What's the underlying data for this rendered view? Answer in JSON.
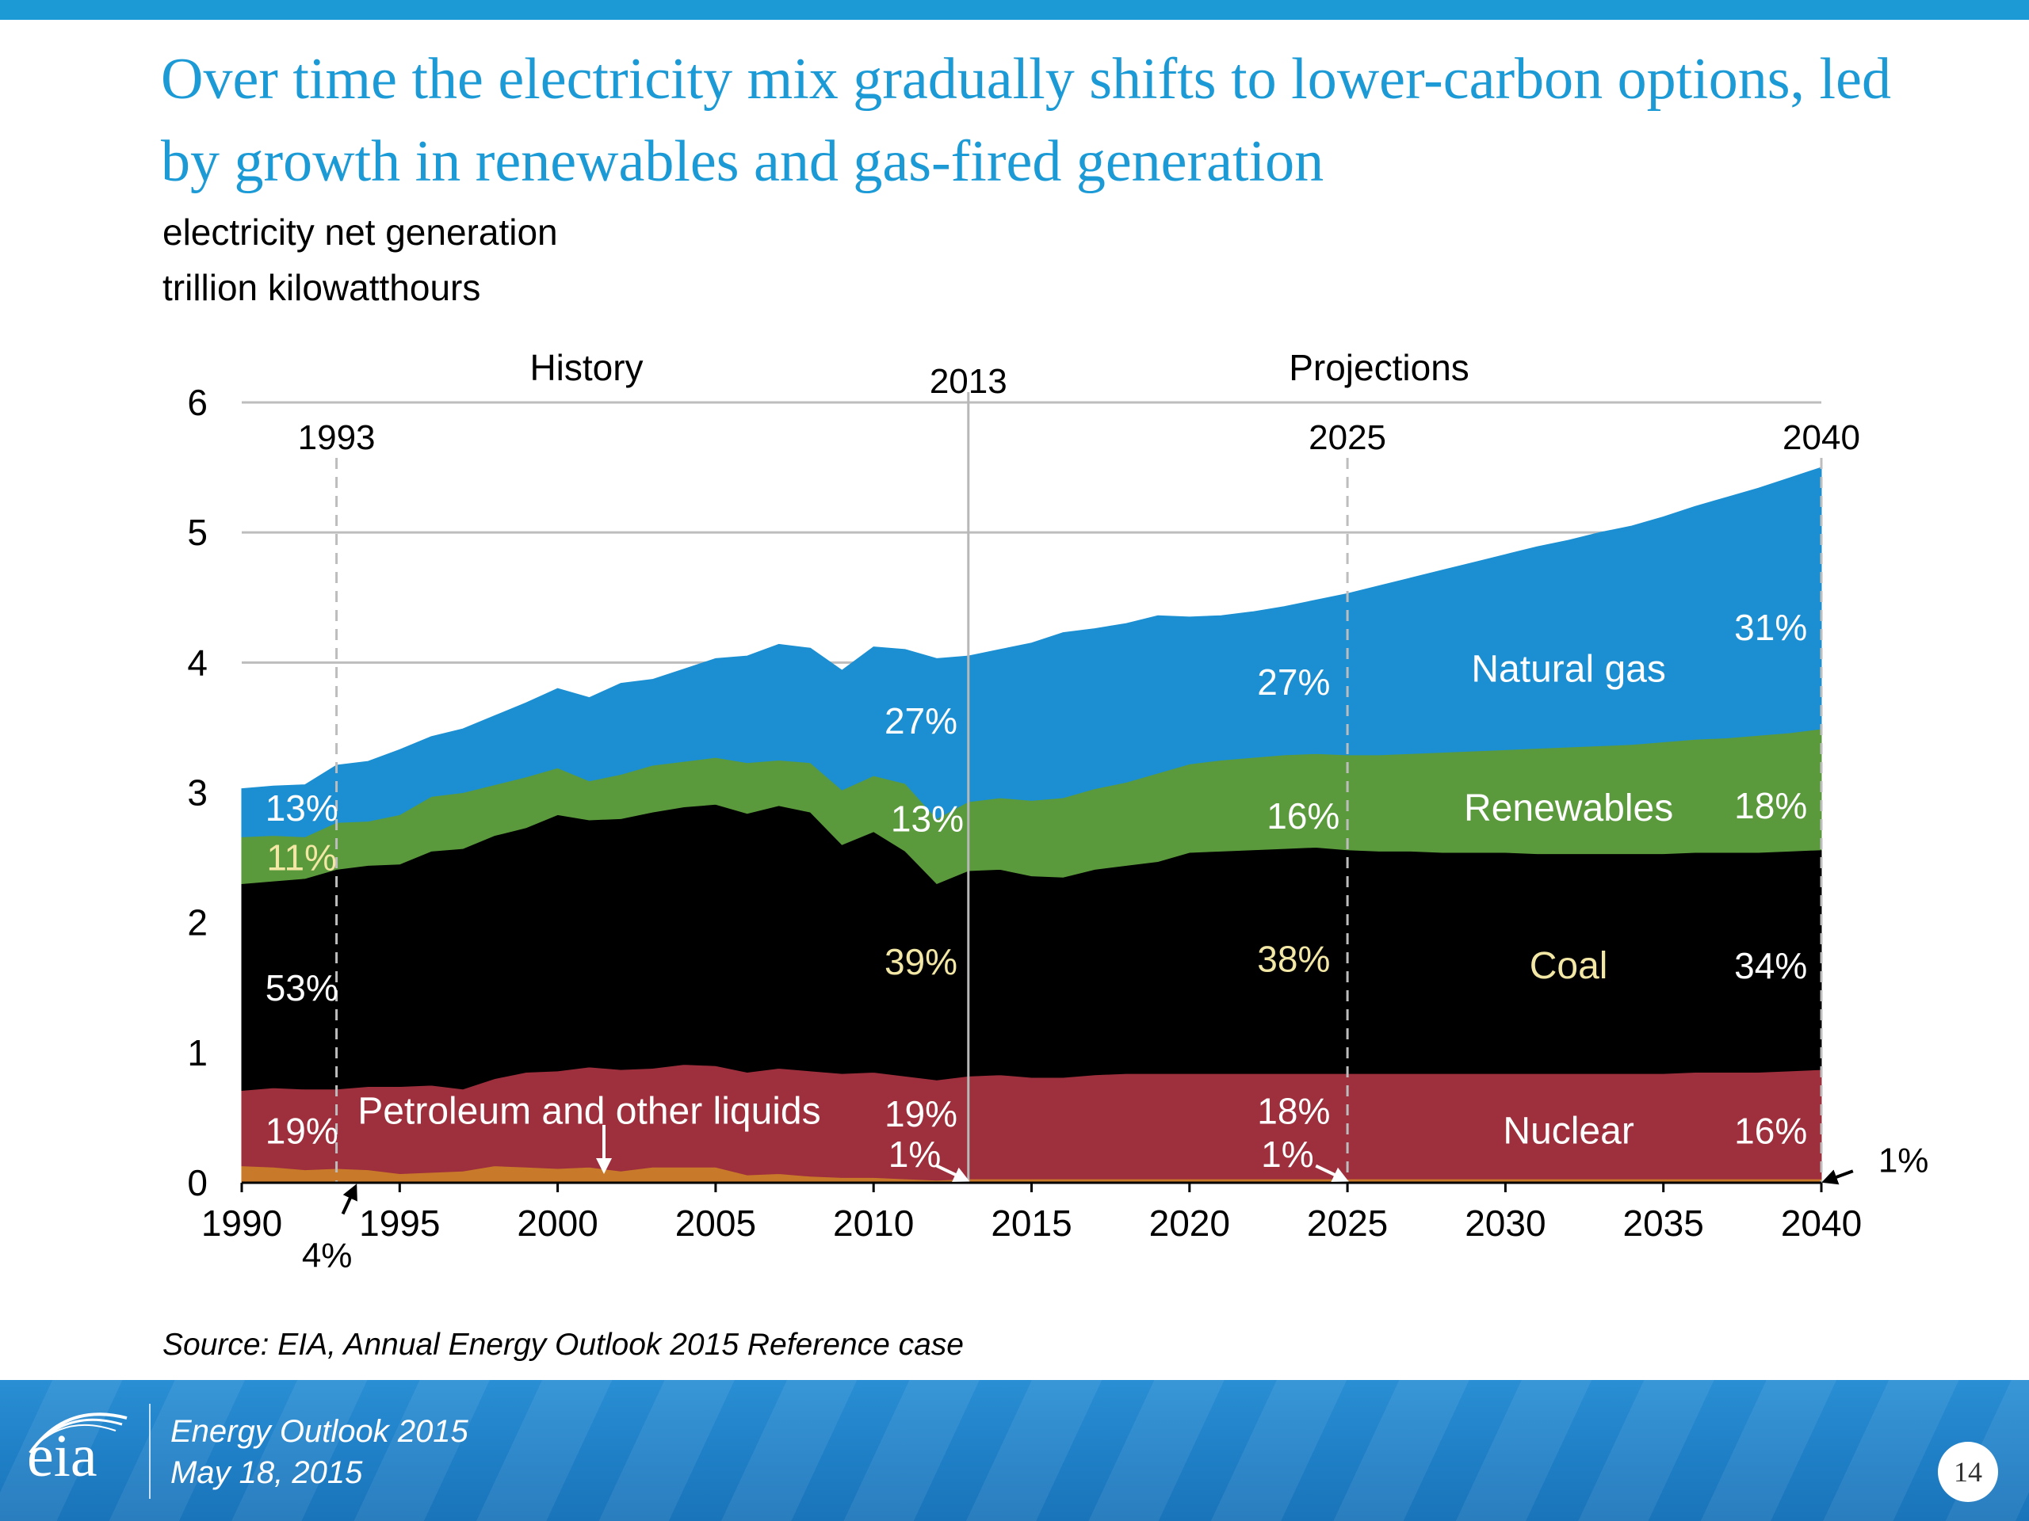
{
  "slide": {
    "title": "Over time the electricity mix gradually shifts to lower-carbon options, led by growth in renewables and gas-fired generation",
    "subtitle_line1": "electricity net generation",
    "subtitle_line2": "trillion kilowatthours",
    "source": "Source:  EIA, Annual Energy Outlook 2015 Reference case",
    "footer": {
      "logo_text": "eia",
      "line1": "Energy  Outlook 2015",
      "line2": "May 18, 2015",
      "page_number": "14"
    },
    "colors": {
      "title": "#1b9ad6",
      "footer": "#1f7fc6"
    }
  },
  "chart_data": {
    "type": "area",
    "stacked": true,
    "x": [
      1990,
      1991,
      1992,
      1993,
      1994,
      1995,
      1996,
      1997,
      1998,
      1999,
      2000,
      2001,
      2002,
      2003,
      2004,
      2005,
      2006,
      2007,
      2008,
      2009,
      2010,
      2011,
      2012,
      2013,
      2014,
      2015,
      2016,
      2017,
      2018,
      2019,
      2020,
      2021,
      2022,
      2023,
      2024,
      2025,
      2026,
      2027,
      2028,
      2029,
      2030,
      2031,
      2032,
      2033,
      2034,
      2035,
      2036,
      2037,
      2038,
      2039,
      2040
    ],
    "xlim": [
      1990,
      2040
    ],
    "ylim": [
      0,
      6
    ],
    "x_ticks": [
      1990,
      1995,
      2000,
      2005,
      2010,
      2015,
      2020,
      2025,
      2030,
      2035,
      2040
    ],
    "y_ticks": [
      0,
      1,
      2,
      3,
      4,
      5,
      6
    ],
    "grid": "horizontal",
    "legend": "labels inside areas",
    "series": [
      {
        "name": "Petroleum and other liquids",
        "color": "#c87a2a",
        "values": [
          0.13,
          0.12,
          0.1,
          0.11,
          0.1,
          0.07,
          0.08,
          0.09,
          0.13,
          0.12,
          0.11,
          0.12,
          0.09,
          0.12,
          0.12,
          0.12,
          0.06,
          0.07,
          0.05,
          0.04,
          0.04,
          0.03,
          0.02,
          0.03,
          0.03,
          0.03,
          0.03,
          0.03,
          0.03,
          0.03,
          0.03,
          0.03,
          0.03,
          0.03,
          0.03,
          0.03,
          0.03,
          0.03,
          0.03,
          0.03,
          0.03,
          0.03,
          0.03,
          0.03,
          0.03,
          0.03,
          0.03,
          0.03,
          0.03,
          0.03,
          0.03
        ]
      },
      {
        "name": "Nuclear",
        "color": "#9e2f3d",
        "values": [
          0.58,
          0.61,
          0.62,
          0.61,
          0.64,
          0.67,
          0.67,
          0.63,
          0.67,
          0.73,
          0.75,
          0.77,
          0.78,
          0.76,
          0.79,
          0.78,
          0.79,
          0.81,
          0.81,
          0.8,
          0.81,
          0.79,
          0.77,
          0.79,
          0.8,
          0.78,
          0.78,
          0.8,
          0.81,
          0.81,
          0.81,
          0.81,
          0.81,
          0.81,
          0.81,
          0.81,
          0.81,
          0.81,
          0.81,
          0.81,
          0.81,
          0.81,
          0.81,
          0.81,
          0.81,
          0.81,
          0.82,
          0.82,
          0.82,
          0.83,
          0.84
        ]
      },
      {
        "name": "Coal",
        "color": "#000000",
        "values": [
          1.59,
          1.59,
          1.62,
          1.69,
          1.7,
          1.71,
          1.8,
          1.85,
          1.87,
          1.88,
          1.97,
          1.9,
          1.93,
          1.97,
          1.98,
          2.01,
          1.99,
          2.02,
          1.99,
          1.76,
          1.85,
          1.73,
          1.51,
          1.58,
          1.58,
          1.55,
          1.54,
          1.58,
          1.6,
          1.63,
          1.7,
          1.71,
          1.72,
          1.73,
          1.74,
          1.72,
          1.71,
          1.71,
          1.7,
          1.7,
          1.7,
          1.69,
          1.69,
          1.69,
          1.69,
          1.69,
          1.69,
          1.69,
          1.69,
          1.69,
          1.69
        ]
      },
      {
        "name": "Renewables",
        "color": "#5b9a3c",
        "values": [
          0.36,
          0.35,
          0.32,
          0.36,
          0.34,
          0.38,
          0.42,
          0.43,
          0.39,
          0.39,
          0.36,
          0.3,
          0.34,
          0.36,
          0.35,
          0.36,
          0.39,
          0.35,
          0.38,
          0.42,
          0.43,
          0.52,
          0.5,
          0.53,
          0.55,
          0.58,
          0.61,
          0.62,
          0.64,
          0.68,
          0.68,
          0.7,
          0.71,
          0.72,
          0.72,
          0.73,
          0.74,
          0.75,
          0.77,
          0.78,
          0.79,
          0.81,
          0.82,
          0.83,
          0.84,
          0.86,
          0.87,
          0.88,
          0.9,
          0.91,
          0.93
        ]
      },
      {
        "name": "Natural gas",
        "color": "#1b8fd2",
        "values": [
          0.37,
          0.38,
          0.4,
          0.44,
          0.46,
          0.5,
          0.46,
          0.49,
          0.53,
          0.57,
          0.61,
          0.64,
          0.7,
          0.66,
          0.71,
          0.76,
          0.82,
          0.89,
          0.88,
          0.92,
          0.99,
          1.03,
          1.23,
          1.12,
          1.14,
          1.21,
          1.27,
          1.23,
          1.22,
          1.21,
          1.13,
          1.11,
          1.12,
          1.14,
          1.18,
          1.24,
          1.3,
          1.35,
          1.4,
          1.45,
          1.5,
          1.55,
          1.59,
          1.64,
          1.68,
          1.73,
          1.79,
          1.85,
          1.9,
          1.96,
          2.01
        ]
      }
    ],
    "y_label": "trillion kilowatthours",
    "period_labels": [
      "History",
      "Projections"
    ],
    "reference_years": [
      {
        "year": 1993,
        "label": "1993",
        "style": "dashed"
      },
      {
        "year": 2013,
        "label": "2013",
        "style": "solid"
      },
      {
        "year": 2025,
        "label": "2025",
        "style": "dashed"
      },
      {
        "year": 2040,
        "label": "2040",
        "style": "dashed"
      }
    ],
    "area_labels": [
      {
        "text": "Natural gas",
        "x": 2032,
        "y": 3.95,
        "color": "#ffffff"
      },
      {
        "text": "Renewables",
        "x": 2032,
        "y": 2.88,
        "color": "#ffffff"
      },
      {
        "text": "Coal",
        "x": 2032,
        "y": 1.67,
        "color": "#f3e7a6"
      },
      {
        "text": "Nuclear",
        "x": 2032,
        "y": 0.4,
        "color": "#ffffff"
      },
      {
        "text": "Petroleum and other liquids",
        "x": 2001,
        "y": 0.55,
        "color": "#ffffff"
      }
    ],
    "share_labels": [
      {
        "text": "13%",
        "x": 1991.9,
        "y": 2.88,
        "color": "#ffffff"
      },
      {
        "text": "11%",
        "x": 1991.9,
        "y": 2.5,
        "color": "#f3e7a6"
      },
      {
        "text": "53%",
        "x": 1991.9,
        "y": 1.5,
        "color": "#ffffff"
      },
      {
        "text": "19%",
        "x": 1991.9,
        "y": 0.4,
        "color": "#ffffff"
      },
      {
        "text": "27%",
        "x": 2011.5,
        "y": 3.55,
        "color": "#ffffff"
      },
      {
        "text": "13%",
        "x": 2011.7,
        "y": 2.8,
        "color": "#ffffff"
      },
      {
        "text": "39%",
        "x": 2011.5,
        "y": 1.7,
        "color": "#f3e7a6"
      },
      {
        "text": "19%",
        "x": 2011.5,
        "y": 0.53,
        "color": "#ffffff"
      },
      {
        "text": "1%",
        "x": 2011.3,
        "y": 0.22,
        "color": "#ffffff"
      },
      {
        "text": "27%",
        "x": 2023.3,
        "y": 3.85,
        "color": "#ffffff"
      },
      {
        "text": "16%",
        "x": 2023.6,
        "y": 2.82,
        "color": "#ffffff"
      },
      {
        "text": "38%",
        "x": 2023.3,
        "y": 1.72,
        "color": "#f3e7a6"
      },
      {
        "text": "18%",
        "x": 2023.3,
        "y": 0.55,
        "color": "#ffffff"
      },
      {
        "text": "1%",
        "x": 2023.1,
        "y": 0.22,
        "color": "#ffffff"
      },
      {
        "text": "31%",
        "x": 2038.4,
        "y": 4.27,
        "color": "#ffffff"
      },
      {
        "text": "18%",
        "x": 2038.4,
        "y": 2.9,
        "color": "#ffffff"
      },
      {
        "text": "34%",
        "x": 2038.4,
        "y": 1.67,
        "color": "#ffffff"
      },
      {
        "text": "16%",
        "x": 2038.4,
        "y": 0.4,
        "color": "#ffffff"
      }
    ],
    "callouts": [
      {
        "text": "4%",
        "label_x": 1992.7,
        "label_y": -0.55,
        "color": "#000000"
      },
      {
        "text": "1%",
        "label_x": 2042.6,
        "label_y": 0.18,
        "color": "#000000"
      }
    ]
  }
}
